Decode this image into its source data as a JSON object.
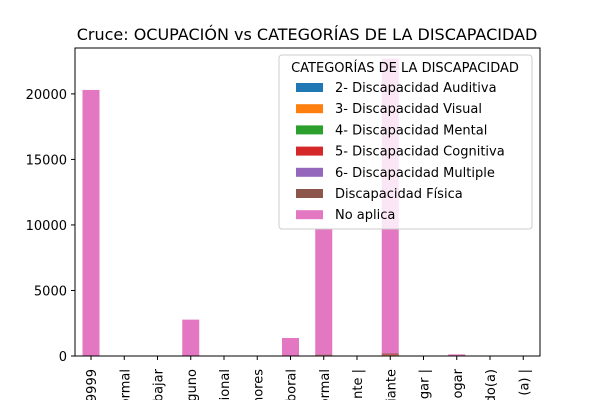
{
  "chart_data": {
    "type": "bar",
    "stacked": true,
    "title": "Cruce: OCUPACIÓN vs CATEGORÍAS DE LA DISCAPACIDAD",
    "xlabel": "",
    "ylabel": "",
    "ylim": [
      0,
      23500
    ],
    "yticks": [
      0,
      5000,
      10000,
      15000,
      20000
    ],
    "categories": [
      "9999",
      "ormal",
      "bajar",
      "guno",
      "ional",
      "nores",
      "boral",
      "ormal",
      "nte |",
      "iante",
      "gar |",
      "ogar",
      "do(a)",
      "(a) |"
    ],
    "legend": {
      "title": "CATEGORÍAS DE LA DISCAPACIDAD",
      "placement": "upper right"
    },
    "series": [
      {
        "name": "2- Discapacidad Auditiva",
        "color": "#1f77b4",
        "values": [
          0,
          0,
          0,
          5,
          0,
          0,
          5,
          20,
          0,
          30,
          0,
          5,
          0,
          0
        ]
      },
      {
        "name": "3- Discapacidad Visual",
        "color": "#ff7f0e",
        "values": [
          0,
          0,
          0,
          5,
          0,
          0,
          5,
          15,
          0,
          25,
          0,
          5,
          0,
          0
        ]
      },
      {
        "name": "4- Discapacidad Mental",
        "color": "#2ca02c",
        "values": [
          0,
          0,
          0,
          0,
          0,
          0,
          0,
          5,
          0,
          10,
          0,
          0,
          0,
          0
        ]
      },
      {
        "name": "5- Discapacidad Cognitiva",
        "color": "#d62728",
        "values": [
          0,
          0,
          0,
          5,
          0,
          0,
          5,
          20,
          0,
          60,
          0,
          5,
          0,
          0
        ]
      },
      {
        "name": "6- Discapacidad Multiple",
        "color": "#9467bd",
        "values": [
          0,
          0,
          0,
          0,
          0,
          0,
          0,
          5,
          0,
          10,
          0,
          0,
          0,
          0
        ]
      },
      {
        "name": "Discapacidad Física",
        "color": "#8c564b",
        "values": [
          0,
          0,
          0,
          10,
          0,
          0,
          10,
          40,
          0,
          60,
          0,
          10,
          0,
          0
        ]
      },
      {
        "name": "No aplica",
        "color": "#e377c2",
        "values": [
          20300,
          0,
          0,
          2750,
          0,
          0,
          1350,
          9600,
          0,
          22500,
          0,
          100,
          0,
          0
        ]
      }
    ]
  }
}
